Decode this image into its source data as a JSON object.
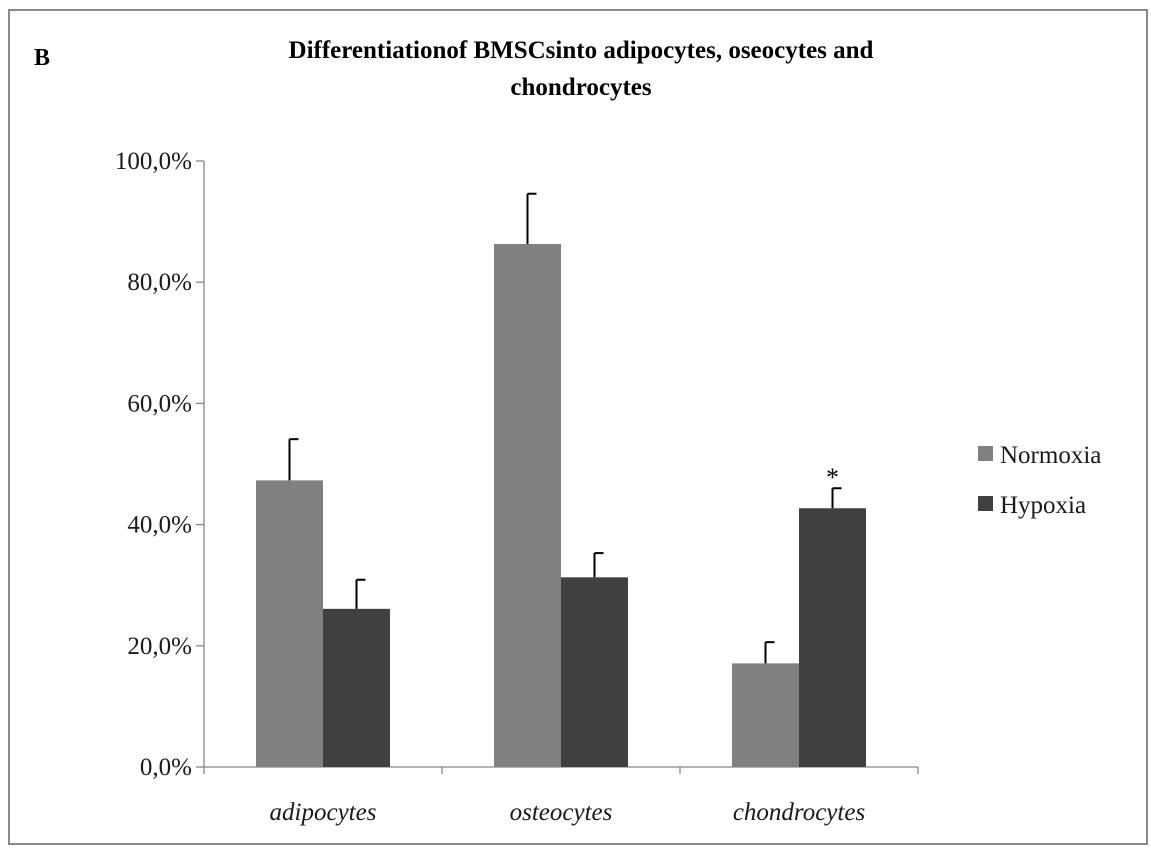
{
  "chart_data": {
    "type": "bar",
    "panel_label": "B",
    "title_lines": [
      "Differentiationof BMSCsinto adipocytes, oseocytes and",
      "chondrocytes"
    ],
    "xlabel": "",
    "ylabel": "",
    "ylim": [
      0,
      1
    ],
    "yticks": [
      0,
      0.2,
      0.4,
      0.6,
      0.8,
      1.0
    ],
    "ytick_labels": [
      "0,0%",
      "20,0%",
      "40,0%",
      "60,0%",
      "80,0%",
      "100,0%"
    ],
    "categories": [
      "adipocytes",
      "osteocytes",
      "chondrocytes"
    ],
    "series": [
      {
        "name": "Normoxia",
        "color": "#808080",
        "values": [
          0.473,
          0.863,
          0.171
        ],
        "errors": [
          0.068,
          0.083,
          0.035
        ]
      },
      {
        "name": "Hypoxia",
        "color": "#404040",
        "values": [
          0.261,
          0.313,
          0.427
        ],
        "errors": [
          0.048,
          0.04,
          0.033
        ]
      }
    ],
    "annotations": [
      {
        "text": "*",
        "category": "chondrocytes",
        "series": "Hypoxia"
      }
    ],
    "grid": false,
    "legend_position": "right"
  }
}
